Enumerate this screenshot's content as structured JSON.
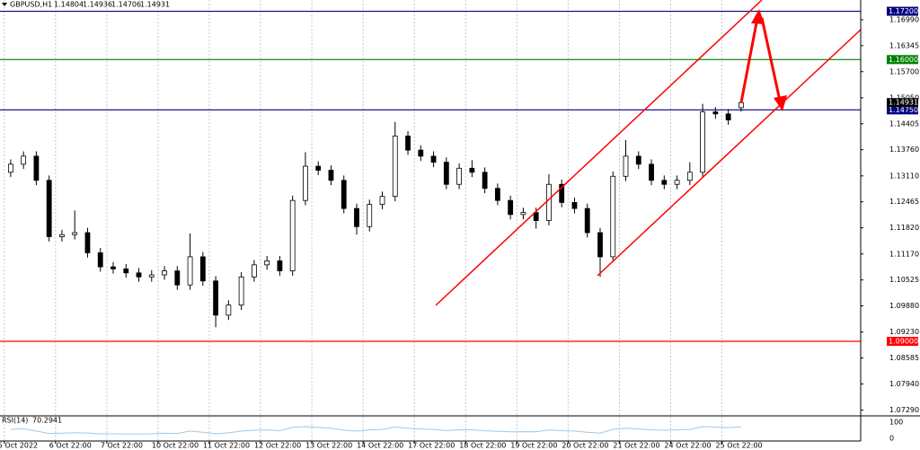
{
  "chart_data": {
    "type": "candlestick",
    "title": "GBPUSD,H1",
    "up_color": "#ffffff",
    "down_color": "#000000",
    "x": [
      5,
      11,
      17,
      23,
      29,
      35,
      41,
      47,
      53,
      59,
      65,
      71,
      77,
      83,
      89,
      95,
      101,
      107,
      113,
      119,
      125,
      131,
      137,
      143,
      149,
      155,
      161,
      167,
      173,
      179,
      185,
      191,
      197,
      203,
      209,
      215,
      221,
      227,
      233,
      239,
      245,
      251,
      257,
      263,
      269,
      275,
      281,
      287,
      293,
      299,
      305,
      311,
      317,
      323,
      329,
      335,
      341,
      347
    ],
    "open": [
      1.132,
      1.134,
      1.136,
      1.13,
      1.116,
      1.1165,
      1.117,
      1.112,
      1.1085,
      1.108,
      1.107,
      1.106,
      1.1065,
      1.1075,
      1.104,
      1.111,
      1.105,
      1.0965,
      1.099,
      1.106,
      1.109,
      1.11,
      1.1075,
      1.125,
      1.1335,
      1.1325,
      1.13,
      1.123,
      1.1185,
      1.124,
      1.126,
      1.141,
      1.1375,
      1.136,
      1.1345,
      1.129,
      1.133,
      1.132,
      1.128,
      1.125,
      1.1215,
      1.122,
      1.12,
      1.129,
      1.1245,
      1.123,
      1.117,
      1.111,
      1.131,
      1.136,
      1.134,
      1.13,
      1.129,
      1.13,
      1.132,
      1.147,
      1.1465,
      1.14804
    ],
    "high": [
      1.1352,
      1.1372,
      1.1372,
      1.1312,
      1.1177,
      1.1225,
      1.1182,
      1.1132,
      1.1097,
      1.1092,
      1.1082,
      1.1077,
      1.1087,
      1.1087,
      1.1168,
      1.1122,
      1.1062,
      1.1002,
      1.1072,
      1.1102,
      1.1112,
      1.1112,
      1.1262,
      1.137,
      1.1347,
      1.1337,
      1.1312,
      1.1242,
      1.1252,
      1.1272,
      1.1445,
      1.1422,
      1.1387,
      1.1372,
      1.1357,
      1.1342,
      1.135,
      1.1332,
      1.1292,
      1.1262,
      1.1232,
      1.1232,
      1.1315,
      1.1302,
      1.1257,
      1.1242,
      1.1182,
      1.1322,
      1.14,
      1.1372,
      1.1352,
      1.1312,
      1.1312,
      1.1345,
      1.149,
      1.1482,
      1.1477,
      1.14936
    ],
    "low": [
      1.1308,
      1.1328,
      1.1288,
      1.1148,
      1.1148,
      1.1153,
      1.1108,
      1.1073,
      1.1068,
      1.1058,
      1.1048,
      1.1048,
      1.1053,
      1.1028,
      1.1028,
      1.1038,
      1.0935,
      1.0953,
      1.0978,
      1.1048,
      1.1078,
      1.1063,
      1.1063,
      1.1238,
      1.1313,
      1.1288,
      1.1218,
      1.1165,
      1.1173,
      1.1228,
      1.1248,
      1.1363,
      1.1348,
      1.1333,
      1.1278,
      1.1278,
      1.1308,
      1.1268,
      1.1238,
      1.1203,
      1.1203,
      1.118,
      1.1188,
      1.1233,
      1.1218,
      1.1158,
      1.106,
      1.1098,
      1.1298,
      1.1328,
      1.1288,
      1.1278,
      1.1278,
      1.1288,
      1.1308,
      1.1453,
      1.1438,
      1.14706
    ],
    "close": [
      1.134,
      1.136,
      1.13,
      1.116,
      1.1165,
      1.117,
      1.112,
      1.1085,
      1.108,
      1.107,
      1.106,
      1.1065,
      1.1075,
      1.104,
      1.111,
      1.105,
      1.0965,
      1.099,
      1.106,
      1.109,
      1.11,
      1.1075,
      1.125,
      1.1335,
      1.1325,
      1.13,
      1.123,
      1.1185,
      1.124,
      1.126,
      1.141,
      1.1375,
      1.136,
      1.1345,
      1.129,
      1.133,
      1.132,
      1.128,
      1.125,
      1.1215,
      1.122,
      1.12,
      1.129,
      1.1245,
      1.123,
      1.117,
      1.111,
      1.131,
      1.136,
      1.134,
      1.13,
      1.129,
      1.13,
      1.132,
      1.147,
      1.1465,
      1.145,
      1.14931
    ],
    "xlim": [
      0,
      403
    ],
    "xticks": [
      {
        "value": 2,
        "label": "5 Oct 2022"
      },
      {
        "value": 26,
        "label": "6 Oct 22:00"
      },
      {
        "value": 50,
        "label": "7 Oct 22:00"
      },
      {
        "value": 74,
        "label": "10 Oct 22:00"
      },
      {
        "value": 98,
        "label": "11 Oct 22:00"
      },
      {
        "value": 122,
        "label": "12 Oct 22:00"
      },
      {
        "value": 146,
        "label": "13 Oct 22:00"
      },
      {
        "value": 170,
        "label": "14 Oct 22:00"
      },
      {
        "value": 194,
        "label": "17 Oct 22:00"
      },
      {
        "value": 218,
        "label": "18 Oct 22:00"
      },
      {
        "value": 242,
        "label": "19 Oct 22:00"
      },
      {
        "value": 266,
        "label": "20 Oct 22:00"
      },
      {
        "value": 290,
        "label": "21 Oct 22:00"
      },
      {
        "value": 314,
        "label": "24 Oct 22:00"
      },
      {
        "value": 338,
        "label": "25 Oct 22:00"
      }
    ],
    "ylim": [
      1.0717,
      1.1748
    ],
    "yticks": [
      {
        "value": 1.1699,
        "label": "1.16990"
      },
      1.16345,
      {
        "value": 1.157,
        "label": "1.15700"
      },
      {
        "value": 1.1505,
        "label": "1.15050"
      },
      1.14405,
      {
        "value": 1.1376,
        "label": "1.13760"
      },
      {
        "value": 1.1311,
        "label": "1.13110"
      },
      1.12465,
      {
        "value": 1.1182,
        "label": "1.11820"
      },
      {
        "value": 1.1117,
        "label": "1.11170"
      },
      1.10525,
      {
        "value": 1.0988,
        "label": "1.09880"
      },
      {
        "value": 1.0923,
        "label": "1.09230"
      },
      1.08585,
      {
        "value": 1.0794,
        "label": "1.07940"
      },
      {
        "value": 1.0729,
        "label": "1.07290"
      }
    ],
    "grid": true,
    "levels": [
      {
        "value": 1.172,
        "label": "1.17200",
        "color": "#000080"
      },
      {
        "value": 1.16,
        "label": "1.16000",
        "color": "#008000"
      },
      {
        "value": 1.1475,
        "label": "1.14750",
        "color": "#000080"
      },
      {
        "value": 1.09,
        "label": "1.09000",
        "color": "#ff0000"
      }
    ],
    "indicator": {
      "name": "RSI(14)",
      "color": "#a0c8e8",
      "values": [
        55,
        60,
        45,
        30,
        32,
        35,
        33,
        28,
        28,
        27,
        26,
        28,
        32,
        30,
        45,
        38,
        28,
        34,
        45,
        50,
        52,
        47,
        68,
        72,
        68,
        62,
        50,
        45,
        52,
        55,
        70,
        62,
        58,
        55,
        48,
        53,
        52,
        47,
        43,
        40,
        41,
        40,
        52,
        47,
        45,
        38,
        32,
        55,
        62,
        58,
        52,
        50,
        52,
        55,
        72,
        70,
        66,
        70.2941
      ],
      "ylim": [
        0,
        100
      ],
      "yticks": [
        100,
        0
      ]
    }
  }
}
